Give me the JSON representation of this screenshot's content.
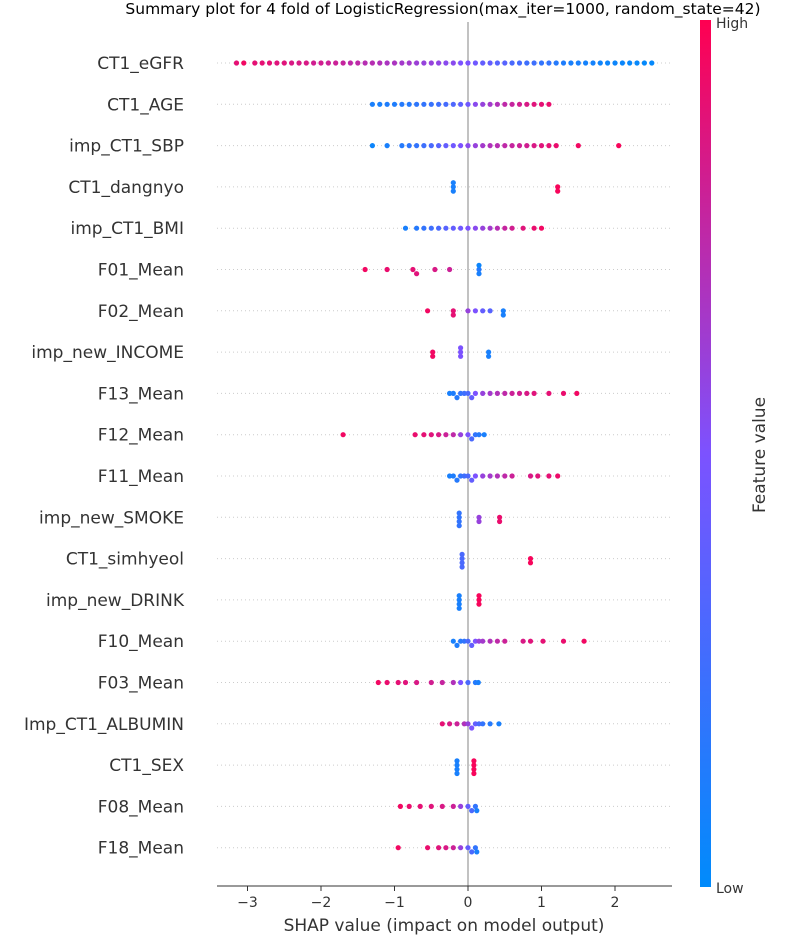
{
  "chart_data": {
    "type": "scatter",
    "subtype": "shap-summary-beeswarm",
    "title": "Summary plot for 4 fold of LogisticRegression(max_iter=1000, random_state=42)",
    "xlabel": "SHAP value (impact on model output)",
    "xlim": [
      -3.4,
      2.8
    ],
    "xticks": [
      -3,
      -2,
      -1,
      0,
      1,
      2
    ],
    "xtick_labels": [
      "−3",
      "−2",
      "−1",
      "0",
      "1",
      "2"
    ],
    "grid": false,
    "colorbar": {
      "label": "Feature value",
      "high_label": "High",
      "low_label": "Low",
      "low_color": "#008bfb",
      "mid_color": "#7c52ff",
      "high_color": "#ff0051",
      "placement": "right"
    },
    "features": [
      {
        "name": "CT1_eGFR",
        "points": [
          [
            -3.15,
            0.9
          ],
          [
            -3.05,
            0.95
          ],
          [
            -2.9,
            0.9
          ],
          [
            -2.8,
            0.9
          ],
          [
            -2.7,
            0.9
          ],
          [
            -2.6,
            0.88
          ],
          [
            -2.5,
            0.88
          ],
          [
            -2.4,
            0.85
          ],
          [
            -2.3,
            0.85
          ],
          [
            -2.2,
            0.85
          ],
          [
            -2.1,
            0.82
          ],
          [
            -2.0,
            0.82
          ],
          [
            -1.9,
            0.8
          ],
          [
            -1.8,
            0.8
          ],
          [
            -1.7,
            0.78
          ],
          [
            -1.6,
            0.75
          ],
          [
            -1.5,
            0.75
          ],
          [
            -1.4,
            0.72
          ],
          [
            -1.3,
            0.72
          ],
          [
            -1.2,
            0.7
          ],
          [
            -1.1,
            0.68
          ],
          [
            -1.0,
            0.68
          ],
          [
            -0.9,
            0.65
          ],
          [
            -0.8,
            0.65
          ],
          [
            -0.7,
            0.62
          ],
          [
            -0.6,
            0.6
          ],
          [
            -0.5,
            0.6
          ],
          [
            -0.4,
            0.58
          ],
          [
            -0.3,
            0.55
          ],
          [
            -0.2,
            0.55
          ],
          [
            -0.1,
            0.5
          ],
          [
            0.0,
            0.5
          ],
          [
            0.1,
            0.45
          ],
          [
            0.2,
            0.4
          ],
          [
            0.3,
            0.4
          ],
          [
            0.4,
            0.35
          ],
          [
            0.5,
            0.35
          ],
          [
            0.6,
            0.3
          ],
          [
            0.7,
            0.28
          ],
          [
            0.8,
            0.25
          ],
          [
            0.9,
            0.25
          ],
          [
            1.0,
            0.2
          ],
          [
            1.1,
            0.2
          ],
          [
            1.2,
            0.15
          ],
          [
            1.3,
            0.12
          ],
          [
            1.4,
            0.1
          ],
          [
            1.5,
            0.1
          ],
          [
            1.6,
            0.08
          ],
          [
            1.7,
            0.08
          ],
          [
            1.8,
            0.06
          ],
          [
            1.9,
            0.05
          ],
          [
            2.0,
            0.05
          ],
          [
            2.1,
            0.04
          ],
          [
            2.2,
            0.03
          ],
          [
            2.3,
            0.03
          ],
          [
            2.4,
            0.02
          ],
          [
            2.5,
            0.02
          ]
        ]
      },
      {
        "name": "CT1_AGE",
        "points": [
          [
            -1.3,
            0.1
          ],
          [
            -1.2,
            0.1
          ],
          [
            -1.1,
            0.12
          ],
          [
            -1.0,
            0.12
          ],
          [
            -0.9,
            0.15
          ],
          [
            -0.8,
            0.15
          ],
          [
            -0.7,
            0.18
          ],
          [
            -0.6,
            0.2
          ],
          [
            -0.5,
            0.22
          ],
          [
            -0.4,
            0.25
          ],
          [
            -0.3,
            0.28
          ],
          [
            -0.2,
            0.32
          ],
          [
            -0.1,
            0.38
          ],
          [
            0.0,
            0.45
          ],
          [
            0.1,
            0.55
          ],
          [
            0.2,
            0.6
          ],
          [
            0.3,
            0.65
          ],
          [
            0.4,
            0.7
          ],
          [
            0.5,
            0.75
          ],
          [
            0.6,
            0.78
          ],
          [
            0.7,
            0.82
          ],
          [
            0.8,
            0.85
          ],
          [
            0.9,
            0.88
          ],
          [
            1.0,
            0.9
          ],
          [
            1.1,
            0.92
          ]
        ]
      },
      {
        "name": "imp_CT1_SBP",
        "points": [
          [
            -1.3,
            0.05
          ],
          [
            -1.1,
            0.1
          ],
          [
            -0.9,
            0.15
          ],
          [
            -0.8,
            0.18
          ],
          [
            -0.7,
            0.2
          ],
          [
            -0.6,
            0.25
          ],
          [
            -0.5,
            0.3
          ],
          [
            -0.4,
            0.35
          ],
          [
            -0.3,
            0.4
          ],
          [
            -0.2,
            0.45
          ],
          [
            -0.1,
            0.5
          ],
          [
            0.0,
            0.55
          ],
          [
            0.1,
            0.6
          ],
          [
            0.2,
            0.65
          ],
          [
            0.3,
            0.7
          ],
          [
            0.4,
            0.72
          ],
          [
            0.5,
            0.75
          ],
          [
            0.6,
            0.78
          ],
          [
            0.7,
            0.8
          ],
          [
            0.8,
            0.82
          ],
          [
            0.9,
            0.85
          ],
          [
            1.0,
            0.88
          ],
          [
            1.1,
            0.9
          ],
          [
            1.2,
            0.92
          ],
          [
            1.5,
            0.95
          ],
          [
            2.05,
            0.97
          ]
        ]
      },
      {
        "name": "CT1_dangnyo",
        "points": [
          [
            -0.2,
            0.1
          ],
          [
            -0.2,
            0.1
          ],
          [
            -0.2,
            0.1
          ],
          [
            1.22,
            0.97
          ],
          [
            1.22,
            0.97
          ]
        ]
      },
      {
        "name": "imp_CT1_BMI",
        "points": [
          [
            -0.85,
            0.1
          ],
          [
            -0.7,
            0.15
          ],
          [
            -0.6,
            0.2
          ],
          [
            -0.5,
            0.25
          ],
          [
            -0.4,
            0.3
          ],
          [
            -0.3,
            0.35
          ],
          [
            -0.2,
            0.4
          ],
          [
            -0.1,
            0.45
          ],
          [
            0.0,
            0.5
          ],
          [
            0.1,
            0.55
          ],
          [
            0.2,
            0.6
          ],
          [
            0.3,
            0.65
          ],
          [
            0.4,
            0.72
          ],
          [
            0.5,
            0.78
          ],
          [
            0.6,
            0.82
          ],
          [
            0.75,
            0.88
          ],
          [
            0.9,
            0.92
          ],
          [
            1.0,
            0.95
          ]
        ]
      },
      {
        "name": "F01_Mean",
        "points": [
          [
            -1.4,
            0.95
          ],
          [
            -1.1,
            0.92
          ],
          [
            -0.75,
            0.9
          ],
          [
            -0.7,
            0.88
          ],
          [
            -0.45,
            0.85
          ],
          [
            -0.25,
            0.8
          ],
          [
            0.15,
            0.15
          ],
          [
            0.15,
            0.1
          ],
          [
            0.15,
            0.05
          ]
        ]
      },
      {
        "name": "F02_Mean",
        "points": [
          [
            -0.55,
            0.95
          ],
          [
            -0.2,
            0.9
          ],
          [
            -0.2,
            0.9
          ],
          [
            0.0,
            0.6
          ],
          [
            0.1,
            0.5
          ],
          [
            0.2,
            0.4
          ],
          [
            0.3,
            0.35
          ],
          [
            0.48,
            0.1
          ],
          [
            0.48,
            0.1
          ]
        ]
      },
      {
        "name": "imp_new_INCOME",
        "points": [
          [
            -0.48,
            0.95
          ],
          [
            -0.48,
            0.95
          ],
          [
            -0.1,
            0.5
          ],
          [
            -0.1,
            0.5
          ],
          [
            -0.1,
            0.5
          ],
          [
            0.28,
            0.1
          ],
          [
            0.28,
            0.1
          ]
        ]
      },
      {
        "name": "F13_Mean",
        "points": [
          [
            -0.25,
            0.1
          ],
          [
            -0.2,
            0.12
          ],
          [
            -0.15,
            0.15
          ],
          [
            -0.1,
            0.2
          ],
          [
            -0.05,
            0.25
          ],
          [
            0.0,
            0.3
          ],
          [
            0.05,
            0.4
          ],
          [
            0.1,
            0.5
          ],
          [
            0.2,
            0.6
          ],
          [
            0.3,
            0.65
          ],
          [
            0.4,
            0.7
          ],
          [
            0.5,
            0.75
          ],
          [
            0.6,
            0.8
          ],
          [
            0.7,
            0.82
          ],
          [
            0.8,
            0.85
          ],
          [
            0.9,
            0.88
          ],
          [
            1.1,
            0.9
          ],
          [
            1.3,
            0.92
          ],
          [
            1.48,
            0.95
          ]
        ]
      },
      {
        "name": "F12_Mean",
        "points": [
          [
            -1.7,
            0.95
          ],
          [
            -0.72,
            0.92
          ],
          [
            -0.6,
            0.9
          ],
          [
            -0.5,
            0.88
          ],
          [
            -0.4,
            0.85
          ],
          [
            -0.3,
            0.8
          ],
          [
            -0.2,
            0.75
          ],
          [
            -0.1,
            0.6
          ],
          [
            0.0,
            0.5
          ],
          [
            0.05,
            0.3
          ],
          [
            0.1,
            0.2
          ],
          [
            0.15,
            0.15
          ],
          [
            0.22,
            0.1
          ]
        ]
      },
      {
        "name": "F11_Mean",
        "points": [
          [
            -0.25,
            0.1
          ],
          [
            -0.2,
            0.12
          ],
          [
            -0.15,
            0.15
          ],
          [
            -0.1,
            0.2
          ],
          [
            -0.05,
            0.25
          ],
          [
            0.0,
            0.3
          ],
          [
            0.05,
            0.4
          ],
          [
            0.1,
            0.5
          ],
          [
            0.2,
            0.6
          ],
          [
            0.3,
            0.65
          ],
          [
            0.4,
            0.7
          ],
          [
            0.5,
            0.75
          ],
          [
            0.6,
            0.8
          ],
          [
            0.85,
            0.85
          ],
          [
            0.95,
            0.88
          ],
          [
            1.1,
            0.9
          ],
          [
            1.22,
            0.93
          ]
        ]
      },
      {
        "name": "imp_new_SMOKE",
        "points": [
          [
            -0.12,
            0.2
          ],
          [
            -0.12,
            0.2
          ],
          [
            -0.12,
            0.2
          ],
          [
            -0.12,
            0.2
          ],
          [
            0.15,
            0.6
          ],
          [
            0.15,
            0.6
          ],
          [
            0.43,
            0.92
          ],
          [
            0.43,
            0.92
          ]
        ]
      },
      {
        "name": "CT1_simhyeol",
        "points": [
          [
            -0.08,
            0.3
          ],
          [
            -0.08,
            0.3
          ],
          [
            -0.08,
            0.3
          ],
          [
            -0.08,
            0.3
          ],
          [
            0.85,
            0.97
          ],
          [
            0.85,
            0.97
          ]
        ]
      },
      {
        "name": "imp_new_DRINK",
        "points": [
          [
            -0.12,
            0.1
          ],
          [
            -0.12,
            0.1
          ],
          [
            -0.12,
            0.1
          ],
          [
            -0.12,
            0.1
          ],
          [
            0.15,
            0.97
          ],
          [
            0.15,
            0.97
          ],
          [
            0.15,
            0.97
          ]
        ]
      },
      {
        "name": "F10_Mean",
        "points": [
          [
            -0.2,
            0.1
          ],
          [
            -0.15,
            0.12
          ],
          [
            -0.1,
            0.15
          ],
          [
            -0.05,
            0.2
          ],
          [
            0.0,
            0.3
          ],
          [
            0.05,
            0.4
          ],
          [
            0.1,
            0.5
          ],
          [
            0.15,
            0.6
          ],
          [
            0.2,
            0.65
          ],
          [
            0.3,
            0.7
          ],
          [
            0.4,
            0.75
          ],
          [
            0.5,
            0.8
          ],
          [
            0.75,
            0.85
          ],
          [
            0.85,
            0.88
          ],
          [
            1.02,
            0.9
          ],
          [
            1.3,
            0.92
          ],
          [
            1.58,
            0.95
          ]
        ]
      },
      {
        "name": "F03_Mean",
        "points": [
          [
            -1.22,
            0.95
          ],
          [
            -1.1,
            0.92
          ],
          [
            -0.95,
            0.9
          ],
          [
            -0.85,
            0.88
          ],
          [
            -0.7,
            0.85
          ],
          [
            -0.5,
            0.82
          ],
          [
            -0.35,
            0.78
          ],
          [
            -0.2,
            0.7
          ],
          [
            -0.1,
            0.5
          ],
          [
            0.0,
            0.3
          ],
          [
            0.1,
            0.15
          ],
          [
            0.14,
            0.1
          ]
        ]
      },
      {
        "name": "Imp_CT1_ALBUMIN",
        "points": [
          [
            -0.35,
            0.9
          ],
          [
            -0.25,
            0.85
          ],
          [
            -0.15,
            0.8
          ],
          [
            -0.05,
            0.7
          ],
          [
            0.0,
            0.6
          ],
          [
            0.05,
            0.5
          ],
          [
            0.1,
            0.4
          ],
          [
            0.15,
            0.3
          ],
          [
            0.2,
            0.2
          ],
          [
            0.3,
            0.15
          ],
          [
            0.42,
            0.1
          ]
        ]
      },
      {
        "name": "CT1_SEX",
        "points": [
          [
            -0.15,
            0.1
          ],
          [
            -0.15,
            0.1
          ],
          [
            -0.15,
            0.1
          ],
          [
            -0.15,
            0.1
          ],
          [
            0.08,
            0.97
          ],
          [
            0.08,
            0.97
          ],
          [
            0.08,
            0.97
          ],
          [
            0.08,
            0.97
          ]
        ]
      },
      {
        "name": "F08_Mean",
        "points": [
          [
            -0.92,
            0.95
          ],
          [
            -0.8,
            0.92
          ],
          [
            -0.65,
            0.9
          ],
          [
            -0.5,
            0.88
          ],
          [
            -0.35,
            0.85
          ],
          [
            -0.2,
            0.8
          ],
          [
            -0.1,
            0.6
          ],
          [
            0.0,
            0.4
          ],
          [
            0.05,
            0.3
          ],
          [
            0.1,
            0.2
          ],
          [
            0.12,
            0.1
          ]
        ]
      },
      {
        "name": "F18_Mean",
        "points": [
          [
            -0.95,
            0.95
          ],
          [
            -0.55,
            0.92
          ],
          [
            -0.4,
            0.88
          ],
          [
            -0.3,
            0.85
          ],
          [
            -0.2,
            0.8
          ],
          [
            -0.1,
            0.6
          ],
          [
            0.0,
            0.4
          ],
          [
            0.05,
            0.3
          ],
          [
            0.1,
            0.2
          ],
          [
            0.12,
            0.1
          ]
        ]
      }
    ]
  }
}
